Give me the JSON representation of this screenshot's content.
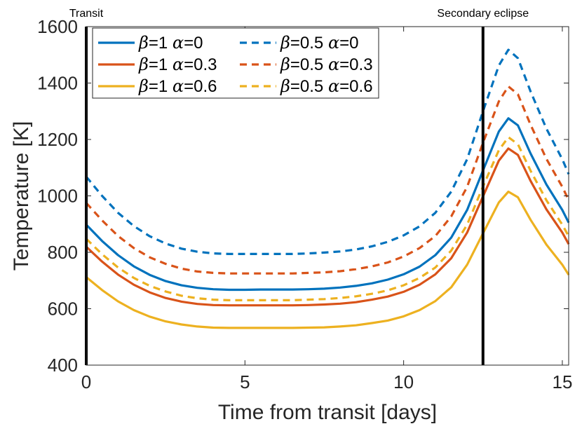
{
  "chart_data": {
    "type": "line",
    "title": "",
    "xlabel": "Time from transit [days]",
    "ylabel": "Temperature [K]",
    "xlim": [
      0,
      15.2
    ],
    "ylim": [
      400,
      1600
    ],
    "xticks": [
      0,
      5,
      10,
      15
    ],
    "yticks": [
      400,
      600,
      800,
      1000,
      1200,
      1400,
      1600
    ],
    "grid": false,
    "legend_position": "top-left",
    "legend_columns": 2,
    "annotations": [
      {
        "text": "Transit",
        "x": 0
      },
      {
        "text": "Secondary eclipse",
        "x": 12.5
      }
    ],
    "vertical_lines": [
      0,
      12.5
    ],
    "x": [
      0,
      0.5,
      1,
      1.5,
      2,
      2.5,
      3,
      3.5,
      4,
      4.5,
      5,
      5.5,
      6,
      6.5,
      7,
      7.5,
      8,
      8.5,
      9,
      9.5,
      10,
      10.5,
      11,
      11.5,
      12,
      12.5,
      13,
      13.3,
      13.6,
      14,
      14.5,
      15,
      15.2
    ],
    "series": [
      {
        "name": "β=1 α=0",
        "beta": "β",
        "beta_val": "=1",
        "alpha": "α",
        "alpha_val": "=0",
        "color": "#0072BD",
        "dash": "solid",
        "values": [
          898,
          840,
          790,
          750,
          720,
          698,
          683,
          674,
          669,
          667,
          667,
          668,
          668,
          668,
          669,
          671,
          675,
          681,
          690,
          703,
          722,
          749,
          790,
          852,
          950,
          1090,
          1228,
          1275,
          1250,
          1150,
          1040,
          950,
          905
        ]
      },
      {
        "name": "β=1 α=0.3",
        "beta": "β",
        "beta_val": "=1",
        "alpha": "α",
        "alpha_val": "=0.3",
        "color": "#D95319",
        "dash": "solid",
        "values": [
          820,
          767,
          721,
          685,
          658,
          638,
          625,
          617,
          613,
          612,
          612,
          612,
          612,
          612,
          613,
          615,
          618,
          623,
          632,
          643,
          660,
          685,
          722,
          779,
          870,
          998,
          1125,
          1168,
          1145,
          1053,
          952,
          870,
          829
        ]
      },
      {
        "name": "β=1 α=0.6",
        "beta": "β",
        "beta_val": "=1",
        "alpha": "α",
        "alpha_val": "=0.6",
        "color": "#EDB120",
        "dash": "solid",
        "values": [
          712,
          666,
          626,
          595,
          572,
          555,
          544,
          537,
          533,
          532,
          532,
          532,
          532,
          532,
          533,
          534,
          537,
          541,
          549,
          558,
          573,
          595,
          627,
          676,
          756,
          867,
          977,
          1015,
          995,
          915,
          827,
          756,
          720
        ]
      },
      {
        "name": "β=0.5 α=0",
        "beta": "β",
        "beta_val": "=0.5",
        "alpha": "α",
        "alpha_val": "=0",
        "color": "#0072BD",
        "dash": "dashed",
        "values": [
          1068,
          1000,
          940,
          893,
          857,
          831,
          813,
          802,
          796,
          794,
          794,
          794,
          794,
          794,
          796,
          799,
          803,
          810,
          821,
          837,
          860,
          892,
          940,
          1015,
          1130,
          1300,
          1462,
          1518,
          1488,
          1370,
          1238,
          1130,
          1077
        ]
      },
      {
        "name": "β=0.5 α=0.3",
        "beta": "β",
        "beta_val": "=0.5",
        "alpha": "α",
        "alpha_val": "=0.3",
        "color": "#D95319",
        "dash": "dashed",
        "values": [
          975,
          913,
          858,
          815,
          782,
          759,
          742,
          732,
          727,
          725,
          725,
          725,
          725,
          725,
          727,
          729,
          733,
          740,
          750,
          764,
          785,
          815,
          858,
          927,
          1032,
          1188,
          1335,
          1388,
          1360,
          1252,
          1131,
          1032,
          985
        ]
      },
      {
        "name": "β=0.5 α=0.6",
        "beta": "β",
        "beta_val": "=0.5",
        "alpha": "α",
        "alpha_val": "=0.6",
        "color": "#EDB120",
        "dash": "dashed",
        "values": [
          848,
          793,
          746,
          709,
          681,
          661,
          646,
          637,
          632,
          630,
          630,
          630,
          630,
          630,
          632,
          634,
          638,
          644,
          653,
          665,
          683,
          709,
          746,
          806,
          898,
          1033,
          1162,
          1208,
          1183,
          1089,
          984,
          898,
          857
        ]
      }
    ]
  }
}
